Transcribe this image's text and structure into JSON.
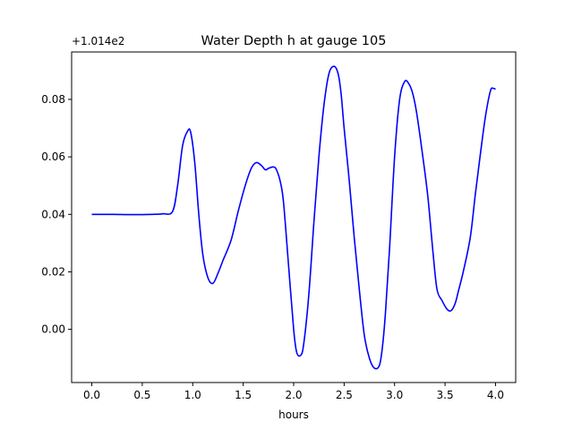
{
  "chart_data": {
    "type": "line",
    "title": "Water Depth h at gauge 105",
    "xlabel": "hours",
    "ylabel": "",
    "y_offset_text": "+1.014e2",
    "xlim": [
      -0.2,
      4.2
    ],
    "ylim": [
      -0.0185,
      0.0965
    ],
    "x_ticks": [
      "0.0",
      "0.5",
      "1.0",
      "1.5",
      "2.0",
      "2.5",
      "3.0",
      "3.5",
      "4.0"
    ],
    "y_ticks": [
      "0.00",
      "0.02",
      "0.04",
      "0.06",
      "0.08"
    ],
    "grid": false,
    "legend": "none",
    "series": [
      {
        "color": "#0000ff",
        "x": [
          0.0,
          0.2,
          0.4,
          0.6,
          0.7,
          0.8,
          0.85,
          0.9,
          0.95,
          0.98,
          1.02,
          1.06,
          1.1,
          1.15,
          1.2,
          1.25,
          1.3,
          1.38,
          1.45,
          1.52,
          1.58,
          1.63,
          1.68,
          1.72,
          1.75,
          1.8,
          1.83,
          1.87,
          1.9,
          1.95,
          2.0,
          2.03,
          2.07,
          2.1,
          2.15,
          2.2,
          2.25,
          2.3,
          2.35,
          2.4,
          2.44,
          2.47,
          2.5,
          2.55,
          2.6,
          2.65,
          2.7,
          2.75,
          2.8,
          2.85,
          2.88,
          2.91,
          2.95,
          3.0,
          3.05,
          3.1,
          3.14,
          3.18,
          3.22,
          3.28,
          3.33,
          3.38,
          3.42,
          3.47,
          3.52,
          3.56,
          3.6,
          3.63,
          3.68,
          3.75,
          3.8,
          3.85,
          3.9,
          3.95,
          3.98,
          4.0
        ],
        "y": [
          0.04,
          0.04,
          0.0399,
          0.04,
          0.0402,
          0.041,
          0.05,
          0.064,
          0.069,
          0.0685,
          0.058,
          0.04,
          0.026,
          0.018,
          0.016,
          0.0195,
          0.024,
          0.031,
          0.041,
          0.05,
          0.056,
          0.058,
          0.057,
          0.0555,
          0.056,
          0.0565,
          0.0555,
          0.051,
          0.044,
          0.022,
          0.0,
          -0.008,
          -0.009,
          -0.005,
          0.012,
          0.037,
          0.06,
          0.078,
          0.089,
          0.0915,
          0.089,
          0.082,
          0.07,
          0.052,
          0.032,
          0.014,
          -0.002,
          -0.01,
          -0.0135,
          -0.0125,
          -0.006,
          0.006,
          0.028,
          0.06,
          0.08,
          0.0862,
          0.0855,
          0.082,
          0.075,
          0.06,
          0.046,
          0.027,
          0.014,
          0.01,
          0.007,
          0.0065,
          0.009,
          0.013,
          0.02,
          0.032,
          0.047,
          0.061,
          0.074,
          0.083,
          0.0838,
          0.0835
        ]
      }
    ]
  }
}
